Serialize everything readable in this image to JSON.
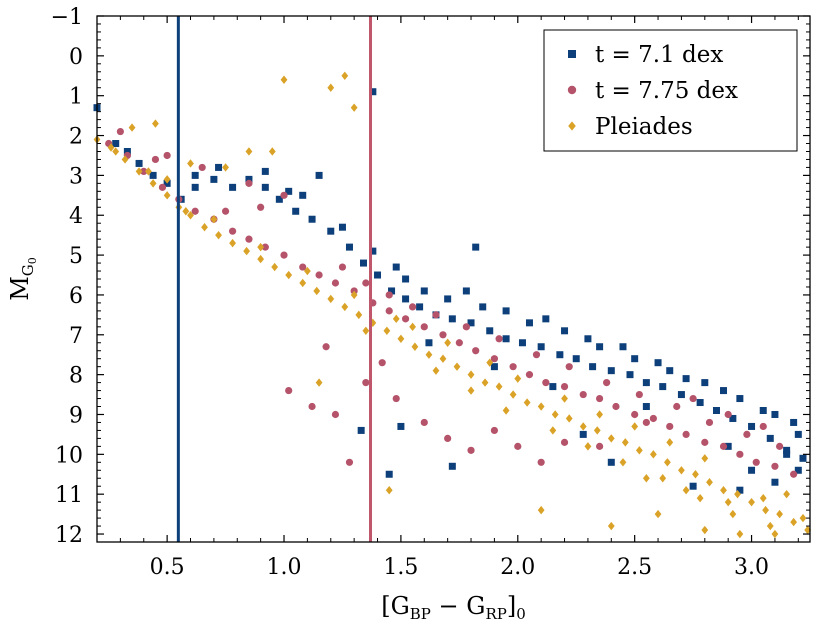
{
  "chart_data": {
    "type": "scatter",
    "title": "",
    "xlabel": "[G_BP − G_RP]_0",
    "xlabel_parts": {
      "open": "[G",
      "sub1": "BP",
      "minus": " − G",
      "sub2": "RP",
      "close": "]",
      "sub3": "0"
    },
    "ylabel": "M_G0",
    "ylabel_parts": {
      "main": "M",
      "sub": "G",
      "subsub": "0"
    },
    "xlim": [
      0.2,
      3.25
    ],
    "ylim": [
      12.2,
      -1
    ],
    "y_inverted": true,
    "xticks": [
      0.5,
      1.0,
      1.5,
      2.0,
      2.5,
      3.0
    ],
    "xtick_labels": [
      "0.5",
      "1.0",
      "1.5",
      "2.0",
      "2.5",
      "3.0"
    ],
    "yticks": [
      -1,
      0,
      1,
      2,
      3,
      4,
      5,
      6,
      7,
      8,
      9,
      10,
      11,
      12
    ],
    "ytick_labels": [
      "−1",
      "0",
      "1",
      "2",
      "3",
      "4",
      "5",
      "6",
      "7",
      "8",
      "9",
      "10",
      "11",
      "12"
    ],
    "grid": false,
    "legend_position": "top-right",
    "series": [
      {
        "name": "t = 7.1 dex",
        "marker": "square",
        "color": "#0d3f7a",
        "points": [
          [
            0.2,
            1.3
          ],
          [
            0.28,
            2.2
          ],
          [
            0.33,
            2.4
          ],
          [
            0.38,
            2.7
          ],
          [
            0.44,
            3.0
          ],
          [
            0.5,
            3.2
          ],
          [
            0.56,
            3.6
          ],
          [
            0.62,
            3.3
          ],
          [
            0.7,
            3.1
          ],
          [
            0.78,
            3.3
          ],
          [
            0.85,
            3.1
          ],
          [
            0.92,
            3.3
          ],
          [
            0.98,
            3.6
          ],
          [
            1.05,
            3.9
          ],
          [
            1.12,
            4.1
          ],
          [
            1.2,
            4.4
          ],
          [
            1.28,
            4.8
          ],
          [
            1.34,
            5.2
          ],
          [
            1.4,
            5.5
          ],
          [
            1.46,
            5.9
          ],
          [
            1.52,
            6.1
          ],
          [
            1.58,
            6.3
          ],
          [
            1.65,
            6.5
          ],
          [
            1.72,
            6.6
          ],
          [
            1.8,
            6.7
          ],
          [
            1.88,
            6.9
          ],
          [
            1.95,
            7.1
          ],
          [
            2.02,
            7.2
          ],
          [
            2.1,
            7.3
          ],
          [
            2.18,
            7.5
          ],
          [
            2.25,
            7.6
          ],
          [
            2.32,
            7.8
          ],
          [
            2.4,
            7.9
          ],
          [
            2.48,
            8.0
          ],
          [
            2.55,
            8.2
          ],
          [
            2.62,
            8.3
          ],
          [
            2.7,
            8.5
          ],
          [
            2.78,
            8.7
          ],
          [
            2.85,
            8.9
          ],
          [
            2.92,
            9.1
          ],
          [
            3.0,
            9.3
          ],
          [
            3.08,
            9.6
          ],
          [
            3.15,
            9.9
          ],
          [
            3.22,
            10.1
          ],
          [
            1.52,
            5.6
          ],
          [
            1.6,
            5.9
          ],
          [
            1.7,
            6.1
          ],
          [
            1.85,
            6.3
          ],
          [
            2.05,
            6.7
          ],
          [
            2.2,
            6.9
          ],
          [
            2.35,
            7.3
          ],
          [
            2.5,
            7.6
          ],
          [
            2.65,
            7.9
          ],
          [
            2.8,
            8.2
          ],
          [
            2.95,
            8.6
          ],
          [
            3.1,
            9.0
          ],
          [
            3.2,
            9.5
          ],
          [
            1.25,
            4.3
          ],
          [
            1.38,
            4.9
          ],
          [
            1.48,
            5.3
          ],
          [
            1.78,
            5.9
          ],
          [
            1.95,
            6.4
          ],
          [
            2.12,
            6.6
          ],
          [
            2.3,
            7.1
          ],
          [
            2.45,
            7.3
          ],
          [
            2.6,
            7.7
          ],
          [
            2.72,
            8.1
          ],
          [
            2.88,
            8.4
          ],
          [
            3.05,
            8.9
          ],
          [
            3.18,
            9.2
          ],
          [
            1.82,
            4.8
          ],
          [
            1.38,
            0.9
          ],
          [
            1.5,
            9.3
          ],
          [
            1.33,
            9.4
          ],
          [
            2.75,
            10.8
          ],
          [
            2.95,
            10.9
          ],
          [
            3.1,
            10.7
          ],
          [
            3.2,
            10.4
          ],
          [
            1.15,
            3.0
          ],
          [
            1.45,
            10.5
          ],
          [
            1.72,
            10.3
          ],
          [
            2.28,
            9.5
          ],
          [
            2.4,
            10.2
          ],
          [
            2.9,
            9.8
          ],
          [
            3.0,
            10.4
          ],
          [
            3.15,
            10.0
          ],
          [
            1.62,
            7.2
          ],
          [
            1.9,
            7.8
          ],
          [
            2.15,
            8.3
          ],
          [
            2.55,
            8.8
          ],
          [
            0.92,
            2.9
          ],
          [
            1.02,
            3.4
          ],
          [
            0.62,
            3.0
          ],
          [
            0.72,
            2.8
          ],
          [
            1.08,
            3.5
          ]
        ]
      },
      {
        "name": "t = 7.75 dex",
        "marker": "circle",
        "color": "#b5536a",
        "points": [
          [
            0.25,
            2.2
          ],
          [
            0.33,
            2.5
          ],
          [
            0.4,
            2.9
          ],
          [
            0.48,
            3.3
          ],
          [
            0.55,
            3.6
          ],
          [
            0.62,
            3.9
          ],
          [
            0.7,
            4.1
          ],
          [
            0.78,
            4.4
          ],
          [
            0.85,
            4.6
          ],
          [
            0.92,
            4.8
          ],
          [
            1.0,
            5.0
          ],
          [
            1.08,
            5.3
          ],
          [
            1.15,
            5.5
          ],
          [
            1.22,
            5.7
          ],
          [
            1.3,
            5.9
          ],
          [
            1.38,
            6.2
          ],
          [
            1.45,
            6.4
          ],
          [
            1.52,
            6.6
          ],
          [
            1.6,
            6.8
          ],
          [
            1.68,
            7.0
          ],
          [
            1.75,
            7.2
          ],
          [
            1.82,
            7.4
          ],
          [
            1.9,
            7.6
          ],
          [
            1.98,
            7.8
          ],
          [
            2.05,
            8.0
          ],
          [
            2.12,
            8.2
          ],
          [
            2.2,
            8.3
          ],
          [
            2.28,
            8.5
          ],
          [
            2.35,
            8.6
          ],
          [
            2.42,
            8.8
          ],
          [
            2.5,
            9.0
          ],
          [
            2.58,
            9.1
          ],
          [
            2.65,
            9.3
          ],
          [
            2.72,
            9.5
          ],
          [
            2.8,
            9.7
          ],
          [
            2.88,
            9.8
          ],
          [
            2.95,
            10.0
          ],
          [
            3.02,
            10.2
          ],
          [
            3.1,
            10.3
          ],
          [
            3.18,
            10.5
          ],
          [
            1.25,
            5.3
          ],
          [
            1.35,
            5.7
          ],
          [
            1.45,
            6.0
          ],
          [
            1.55,
            6.3
          ],
          [
            1.65,
            6.5
          ],
          [
            1.78,
            6.8
          ],
          [
            1.92,
            7.1
          ],
          [
            2.08,
            7.5
          ],
          [
            2.22,
            7.8
          ],
          [
            2.38,
            8.2
          ],
          [
            2.52,
            8.5
          ],
          [
            2.68,
            8.8
          ],
          [
            2.82,
            9.2
          ],
          [
            2.98,
            9.5
          ],
          [
            3.12,
            9.8
          ],
          [
            0.3,
            1.9
          ],
          [
            0.45,
            2.6
          ],
          [
            0.75,
            3.9
          ],
          [
            1.02,
            8.4
          ],
          [
            1.12,
            8.8
          ],
          [
            1.22,
            9.0
          ],
          [
            1.28,
            10.2
          ],
          [
            1.35,
            8.2
          ],
          [
            1.48,
            8.6
          ],
          [
            1.6,
            9.2
          ],
          [
            1.7,
            9.6
          ],
          [
            1.8,
            9.9
          ],
          [
            1.9,
            9.4
          ],
          [
            2.0,
            9.8
          ],
          [
            2.1,
            10.2
          ],
          [
            2.2,
            9.7
          ],
          [
            0.65,
            2.8
          ],
          [
            0.9,
            3.8
          ],
          [
            1.18,
            7.3
          ],
          [
            1.42,
            7.7
          ],
          [
            2.35,
            9.8
          ],
          [
            2.55,
            9.2
          ],
          [
            2.75,
            8.6
          ],
          [
            2.9,
            9.0
          ],
          [
            3.05,
            9.3
          ],
          [
            0.5,
            2.5
          ],
          [
            1.0,
            3.5
          ],
          [
            0.85,
            3.2
          ]
        ]
      },
      {
        "name": "Pleiades",
        "marker": "diamond",
        "color": "#daa328",
        "points": [
          [
            0.2,
            2.1
          ],
          [
            0.26,
            2.3
          ],
          [
            0.32,
            2.6
          ],
          [
            0.38,
            2.9
          ],
          [
            0.44,
            3.2
          ],
          [
            0.5,
            3.5
          ],
          [
            0.55,
            3.8
          ],
          [
            0.6,
            4.0
          ],
          [
            0.66,
            4.3
          ],
          [
            0.72,
            4.5
          ],
          [
            0.78,
            4.7
          ],
          [
            0.84,
            4.9
          ],
          [
            0.9,
            5.1
          ],
          [
            0.96,
            5.3
          ],
          [
            1.02,
            5.5
          ],
          [
            1.08,
            5.7
          ],
          [
            1.14,
            5.9
          ],
          [
            1.2,
            6.1
          ],
          [
            1.26,
            6.3
          ],
          [
            1.32,
            6.5
          ],
          [
            1.38,
            6.7
          ],
          [
            1.44,
            6.9
          ],
          [
            1.5,
            7.1
          ],
          [
            1.56,
            7.3
          ],
          [
            1.62,
            7.5
          ],
          [
            1.68,
            7.6
          ],
          [
            1.74,
            7.8
          ],
          [
            1.8,
            8.0
          ],
          [
            1.86,
            8.2
          ],
          [
            1.92,
            8.3
          ],
          [
            1.98,
            8.5
          ],
          [
            2.04,
            8.7
          ],
          [
            2.1,
            8.8
          ],
          [
            2.16,
            9.0
          ],
          [
            2.22,
            9.1
          ],
          [
            2.28,
            9.3
          ],
          [
            2.34,
            9.4
          ],
          [
            2.4,
            9.6
          ],
          [
            2.46,
            9.7
          ],
          [
            2.52,
            9.9
          ],
          [
            2.58,
            10.0
          ],
          [
            2.64,
            10.2
          ],
          [
            2.7,
            10.4
          ],
          [
            2.76,
            10.5
          ],
          [
            2.82,
            10.7
          ],
          [
            2.88,
            10.9
          ],
          [
            2.94,
            11.0
          ],
          [
            3.0,
            11.2
          ],
          [
            3.06,
            11.4
          ],
          [
            3.12,
            11.5
          ],
          [
            3.18,
            11.7
          ],
          [
            3.24,
            11.9
          ],
          [
            0.45,
            1.7
          ],
          [
            0.35,
            1.8
          ],
          [
            0.6,
            2.7
          ],
          [
            0.75,
            2.8
          ],
          [
            0.85,
            2.4
          ],
          [
            0.95,
            2.4
          ],
          [
            1.0,
            0.6
          ],
          [
            1.2,
            0.8
          ],
          [
            1.26,
            0.5
          ],
          [
            1.3,
            1.3
          ],
          [
            1.15,
            8.2
          ],
          [
            1.45,
            10.9
          ],
          [
            2.1,
            11.4
          ],
          [
            2.4,
            11.8
          ],
          [
            2.6,
            11.5
          ],
          [
            2.8,
            11.9
          ],
          [
            2.95,
            12.0
          ],
          [
            3.1,
            12.0
          ],
          [
            3.22,
            11.6
          ],
          [
            2.55,
            10.6
          ],
          [
            2.72,
            10.9
          ],
          [
            2.9,
            11.2
          ],
          [
            3.05,
            11.1
          ],
          [
            3.15,
            11.0
          ],
          [
            1.7,
            7.2
          ],
          [
            1.88,
            7.7
          ],
          [
            2.0,
            8.1
          ],
          [
            2.2,
            8.6
          ],
          [
            2.35,
            9.0
          ],
          [
            2.5,
            9.3
          ],
          [
            2.65,
            9.7
          ],
          [
            2.8,
            10.1
          ],
          [
            0.5,
            3.1
          ],
          [
            0.7,
            4.1
          ],
          [
            0.9,
            4.8
          ],
          [
            1.1,
            5.4
          ],
          [
            1.3,
            6.0
          ],
          [
            1.48,
            6.6
          ],
          [
            1.65,
            7.9
          ],
          [
            1.8,
            8.4
          ],
          [
            1.95,
            8.9
          ],
          [
            2.15,
            9.4
          ],
          [
            2.3,
            9.8
          ],
          [
            2.45,
            10.2
          ],
          [
            2.62,
            10.6
          ],
          [
            2.78,
            11.1
          ],
          [
            2.92,
            11.5
          ],
          [
            3.08,
            11.8
          ],
          [
            1.55,
            6.8
          ],
          [
            1.35,
            6.9
          ],
          [
            0.58,
            3.9
          ],
          [
            0.42,
            2.9
          ],
          [
            0.28,
            2.4
          ]
        ]
      }
    ],
    "vertical_lines": [
      {
        "x": 0.548,
        "color": "#0d3f7a"
      },
      {
        "x": 1.37,
        "color": "#c0566b"
      }
    ]
  }
}
